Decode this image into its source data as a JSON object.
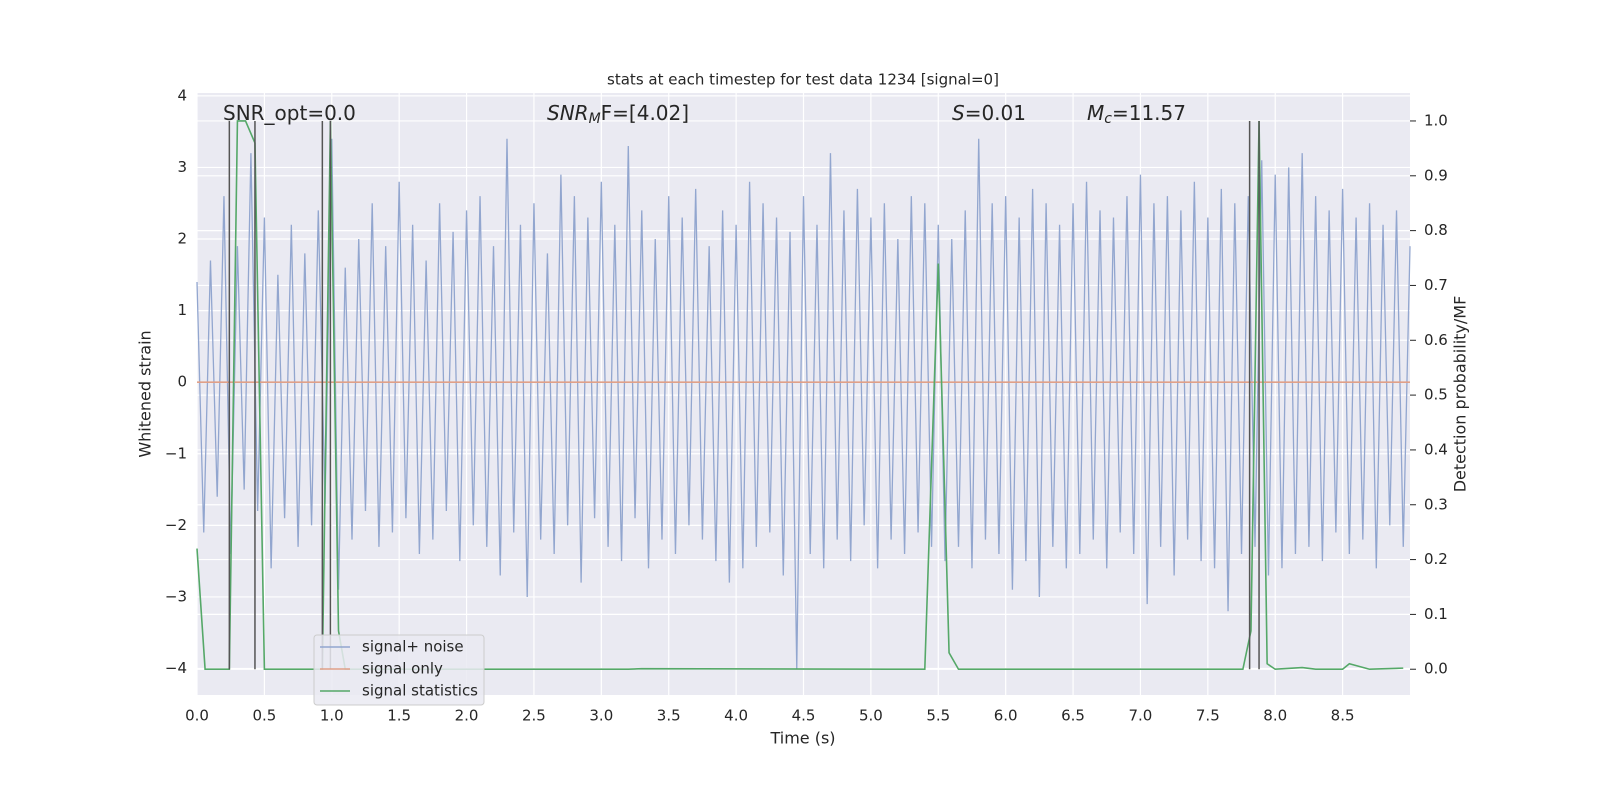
{
  "chart_data": {
    "type": "line",
    "title": "stats at each timestep for test data 1234 [signal=0]",
    "xlabel": "Time (s)",
    "ylabel": "Whitened strain",
    "y2label": "Detection probability/MF",
    "xlim": [
      0,
      9.0
    ],
    "ylim": [
      -4.37,
      4.04
    ],
    "y2lim": [
      -0.047,
      1.051
    ],
    "xticks": [
      {
        "value": 0,
        "label": "0.0"
      },
      0.5,
      {
        "value": 1,
        "label": "1.0"
      },
      1.5,
      {
        "value": 2,
        "label": "2.0"
      },
      2.5,
      {
        "value": 3,
        "label": "3.0"
      },
      3.5,
      {
        "value": 4,
        "label": "4.0"
      },
      4.5,
      {
        "value": 5,
        "label": "5.0"
      },
      5.5,
      {
        "value": 6,
        "label": "6.0"
      },
      6.5,
      {
        "value": 7,
        "label": "7.0"
      },
      7.5,
      {
        "value": 8,
        "label": "8.0"
      },
      8.5
    ],
    "yticks": [
      {
        "value": -4,
        "label": "−4"
      },
      {
        "value": -3,
        "label": "−3"
      },
      {
        "value": -2,
        "label": "−2"
      },
      {
        "value": -1,
        "label": "−1"
      },
      0,
      1,
      2,
      3,
      4
    ],
    "y2ticks": [
      {
        "value": 0,
        "label": "0.0"
      },
      0.1,
      0.2,
      0.3,
      0.4,
      0.5,
      0.6,
      0.7,
      0.8,
      0.9,
      {
        "value": 1,
        "label": "1.0"
      }
    ],
    "grid": true,
    "legend": "lower left",
    "annotations": [
      {
        "text": "SNR_opt=0.0"
      },
      {
        "base": "SNR",
        "sub": "M",
        "rest": "F=[4.02]"
      },
      {
        "base": "S",
        "rest": "=0.01"
      },
      {
        "base": "M",
        "sub": "c",
        "rest": "=11.57"
      }
    ],
    "vlines": {
      "color": "#555555",
      "x": [
        0.24,
        0.43,
        0.93,
        0.99,
        7.81,
        7.88
      ],
      "y2range": [
        0,
        1
      ]
    },
    "series": [
      {
        "name": "signal+ noise",
        "color": "#92a6cf",
        "x": [
          0,
          0.05,
          0.1,
          0.15,
          0.2,
          0.25,
          0.3,
          0.35,
          0.4,
          0.45,
          0.5,
          0.55,
          0.6,
          0.65,
          0.7,
          0.75,
          0.8,
          0.85,
          0.9,
          0.95,
          1,
          1.05,
          1.1,
          1.15,
          1.2,
          1.25,
          1.3,
          1.35,
          1.4,
          1.45,
          1.5,
          1.55,
          1.6,
          1.65,
          1.7,
          1.75,
          1.8,
          1.85,
          1.9,
          1.95,
          2,
          2.05,
          2.1,
          2.15,
          2.2,
          2.25,
          2.3,
          2.35,
          2.4,
          2.45,
          2.5,
          2.55,
          2.6,
          2.65,
          2.7,
          2.75,
          2.8,
          2.85,
          2.9,
          2.95,
          3,
          3.05,
          3.1,
          3.15,
          3.2,
          3.25,
          3.3,
          3.35,
          3.4,
          3.45,
          3.5,
          3.55,
          3.6,
          3.65,
          3.7,
          3.75,
          3.8,
          3.85,
          3.9,
          3.95,
          4,
          4.05,
          4.1,
          4.15,
          4.2,
          4.25,
          4.3,
          4.35,
          4.4,
          4.45,
          4.5,
          4.55,
          4.6,
          4.65,
          4.7,
          4.75,
          4.8,
          4.85,
          4.9,
          4.95,
          5,
          5.05,
          5.1,
          5.15,
          5.2,
          5.25,
          5.3,
          5.35,
          5.4,
          5.45,
          5.5,
          5.55,
          5.6,
          5.65,
          5.7,
          5.75,
          5.8,
          5.85,
          5.9,
          5.95,
          6,
          6.05,
          6.1,
          6.15,
          6.2,
          6.25,
          6.3,
          6.35,
          6.4,
          6.45,
          6.5,
          6.55,
          6.6,
          6.65,
          6.7,
          6.75,
          6.8,
          6.85,
          6.9,
          6.95,
          7,
          7.05,
          7.1,
          7.15,
          7.2,
          7.25,
          7.3,
          7.35,
          7.4,
          7.45,
          7.5,
          7.55,
          7.6,
          7.65,
          7.7,
          7.75,
          7.8,
          7.85,
          7.9,
          7.95,
          8,
          8.05,
          8.1,
          8.15,
          8.2,
          8.25,
          8.3,
          8.35,
          8.4,
          8.45,
          8.5,
          8.55,
          8.6,
          8.65,
          8.7,
          8.75,
          8.8,
          8.85,
          8.9,
          8.95,
          9
        ],
        "values": [
          1.4,
          -2.1,
          1.7,
          -1.6,
          2.6,
          -2.4,
          1.9,
          -1.5,
          3.2,
          -1.8,
          2.3,
          -2.6,
          1.5,
          -1.9,
          2.2,
          -2.3,
          1.8,
          -2.0,
          2.4,
          -1.7,
          3.4,
          -2.9,
          1.6,
          -2.2,
          2.0,
          -1.8,
          2.5,
          -2.3,
          1.9,
          -2.1,
          2.8,
          -1.9,
          2.2,
          -2.4,
          1.7,
          -2.2,
          2.5,
          -1.8,
          2.1,
          -2.5,
          2.4,
          -2.0,
          2.6,
          -2.3,
          1.9,
          -2.7,
          3.4,
          -2.1,
          2.2,
          -3.0,
          2.5,
          -2.2,
          1.8,
          -2.4,
          2.9,
          -2.0,
          2.6,
          -2.8,
          2.3,
          -1.9,
          2.8,
          -2.3,
          2.2,
          -2.5,
          3.3,
          -1.9,
          2.4,
          -2.6,
          2.0,
          -2.2,
          2.6,
          -2.4,
          2.3,
          -2.0,
          2.7,
          -2.2,
          1.9,
          -2.5,
          2.4,
          -2.8,
          2.2,
          -2.6,
          2.8,
          -2.3,
          2.5,
          -2.1,
          2.3,
          -2.7,
          2.1,
          -4.0,
          2.6,
          -2.4,
          2.2,
          -2.6,
          3.2,
          -2.2,
          2.4,
          -2.5,
          2.7,
          -2.0,
          2.3,
          -2.6,
          2.5,
          -2.2,
          2.0,
          -2.4,
          2.6,
          -2.1,
          2.5,
          -2.3,
          2.2,
          -2.5,
          2.0,
          -2.3,
          2.4,
          -2.6,
          3.4,
          -2.2,
          2.5,
          -2.4,
          2.6,
          -2.9,
          2.3,
          -2.5,
          2.7,
          -3.0,
          2.5,
          -2.3,
          2.2,
          -2.6,
          2.5,
          -2.4,
          2.8,
          -2.2,
          2.4,
          -2.6,
          2.3,
          -2.1,
          2.6,
          -2.4,
          2.9,
          -3.1,
          2.5,
          -2.3,
          2.6,
          -2.7,
          2.4,
          -2.2,
          2.8,
          -2.5,
          2.3,
          -2.6,
          2.7,
          -3.2,
          2.5,
          -2.4,
          2.6,
          -2.3,
          3.1,
          -2.7,
          2.9,
          -2.6,
          3.0,
          -2.4,
          3.2,
          -2.3,
          2.6,
          -2.5,
          2.4,
          -2.1,
          2.7,
          -2.4,
          2.3,
          -2.2,
          2.5,
          -2.6,
          2.2,
          -2.0,
          2.4,
          -2.3,
          1.9
        ]
      },
      {
        "name": "signal only",
        "color": "#e0a088",
        "x": [
          0,
          9.0
        ],
        "values": [
          0,
          0
        ]
      },
      {
        "name": "signal statistics",
        "color": "#55a868",
        "axis": "y2",
        "x": [
          0,
          0.06,
          0.24,
          0.3,
          0.36,
          0.43,
          0.5,
          0.93,
          0.99,
          1.05,
          1.1,
          3.2,
          3.3,
          5.4,
          5.5,
          5.58,
          5.65,
          7.76,
          7.82,
          7.88,
          7.94,
          8.0,
          8.2,
          8.3,
          8.5,
          8.55,
          8.7,
          8.95
        ],
        "values": [
          0.22,
          0,
          0,
          1.0,
          1.0,
          0.96,
          0,
          0,
          1.0,
          0.07,
          0,
          0,
          0.001,
          0,
          0.74,
          0.03,
          0,
          0,
          0.07,
          1.0,
          0.01,
          0,
          0.003,
          0,
          0,
          0.01,
          0,
          0.002
        ]
      }
    ]
  }
}
